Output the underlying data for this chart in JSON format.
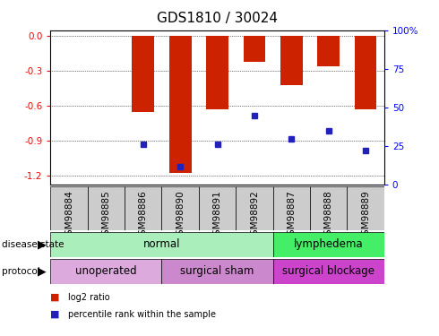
{
  "title": "GDS1810 / 30024",
  "samples": [
    "GSM98884",
    "GSM98885",
    "GSM98886",
    "GSM98890",
    "GSM98891",
    "GSM98892",
    "GSM98887",
    "GSM98888",
    "GSM98889"
  ],
  "log2_ratio": [
    0.0,
    0.0,
    -0.65,
    -1.18,
    -0.63,
    -0.22,
    -0.42,
    -0.26,
    -0.63
  ],
  "percentile_rank": [
    null,
    null,
    26,
    12,
    26,
    45,
    30,
    35,
    22
  ],
  "ylim": [
    -1.28,
    0.05
  ],
  "yticks_left": [
    0.0,
    -0.3,
    -0.6,
    -0.9,
    -1.2
  ],
  "yticks_right": [
    0,
    25,
    50,
    75,
    100
  ],
  "bar_color": "#cc2200",
  "dot_color": "#2222bb",
  "plot_bg": "#ffffff",
  "xtick_bg": "#cccccc",
  "disease_state_groups": [
    {
      "label": "normal",
      "start": 0,
      "end": 5,
      "color": "#aaeebb"
    },
    {
      "label": "lymphedema",
      "start": 6,
      "end": 8,
      "color": "#44ee66"
    }
  ],
  "protocol_groups": [
    {
      "label": "unoperated",
      "start": 0,
      "end": 2,
      "color": "#ddaadd"
    },
    {
      "label": "surgical sham",
      "start": 3,
      "end": 5,
      "color": "#cc88cc"
    },
    {
      "label": "surgical blockage",
      "start": 6,
      "end": 8,
      "color": "#cc44cc"
    }
  ],
  "legend_items": [
    {
      "label": "log2 ratio",
      "color": "#cc2200"
    },
    {
      "label": "percentile rank within the sample",
      "color": "#2222bb"
    }
  ],
  "title_fontsize": 11,
  "tick_fontsize": 7.5,
  "label_fontsize": 8.5,
  "annot_fontsize": 8
}
